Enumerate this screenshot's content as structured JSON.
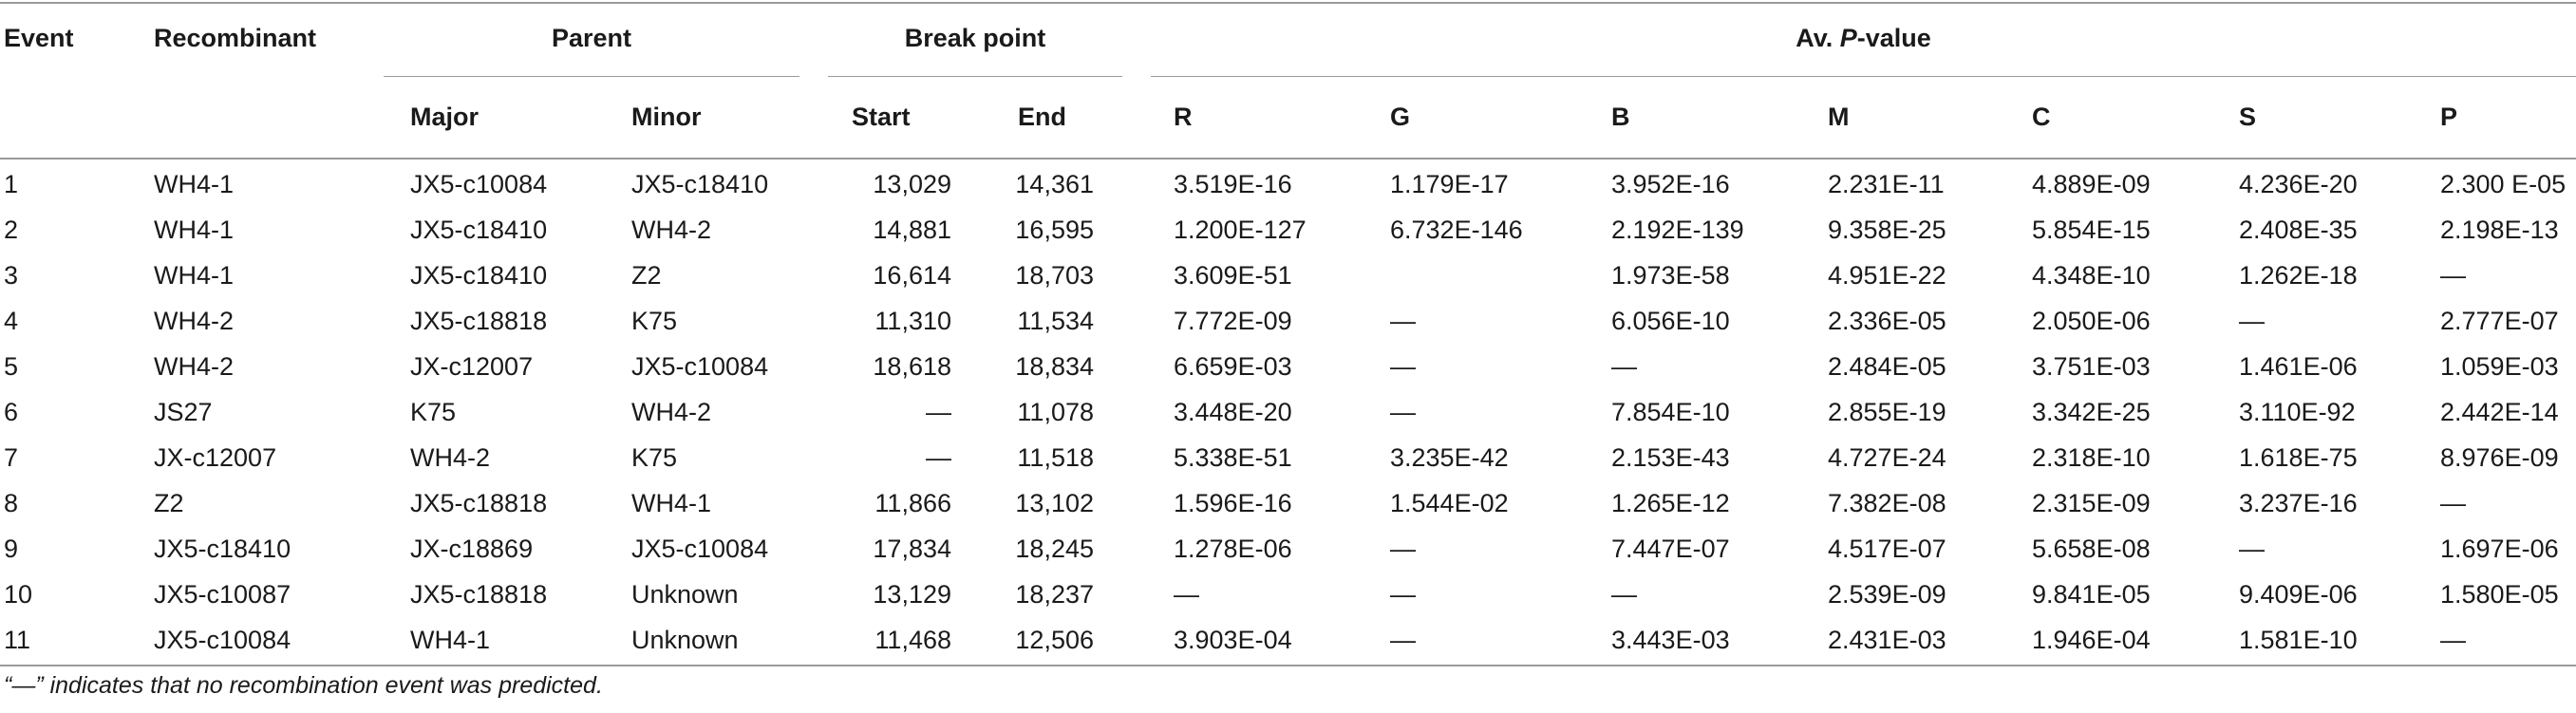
{
  "header": {
    "event": "Event",
    "recombinant": "Recombinant",
    "parent": "Parent",
    "breakpoint": "Break point",
    "pvalue_prefix": "Av. ",
    "pvalue_italic": "P",
    "pvalue_suffix": "-value",
    "major": "Major",
    "minor": "Minor",
    "start": "Start",
    "end": "End",
    "methods": [
      "R",
      "G",
      "B",
      "M",
      "C",
      "S",
      "P"
    ]
  },
  "rows": [
    [
      "1",
      "WH4-1",
      "JX5-c10084",
      "JX5-c18410",
      "13,029",
      "14,361",
      "3.519E-16",
      "1.179E-17",
      "3.952E-16",
      "2.231E-11",
      "4.889E-09",
      "4.236E-20",
      "2.300 E-05"
    ],
    [
      "2",
      "WH4-1",
      "JX5-c18410",
      "WH4-2",
      "14,881",
      "16,595",
      "1.200E-127",
      "6.732E-146",
      "2.192E-139",
      "9.358E-25",
      "5.854E-15",
      "2.408E-35",
      "2.198E-13"
    ],
    [
      "3",
      "WH4-1",
      "JX5-c18410",
      "Z2",
      "16,614",
      "18,703",
      "3.609E-51",
      "",
      "1.973E-58",
      "4.951E-22",
      "4.348E-10",
      "1.262E-18",
      "—"
    ],
    [
      "4",
      "WH4-2",
      "JX5-c18818",
      "K75",
      "11,310",
      "11,534",
      "7.772E-09",
      "—",
      "6.056E-10",
      "2.336E-05",
      "2.050E-06",
      "—",
      "2.777E-07"
    ],
    [
      "5",
      "WH4-2",
      "JX-c12007",
      "JX5-c10084",
      "18,618",
      "18,834",
      "6.659E-03",
      "—",
      "—",
      "2.484E-05",
      "3.751E-03",
      "1.461E-06",
      "1.059E-03"
    ],
    [
      "6",
      "JS27",
      "K75",
      "WH4-2",
      "—",
      "11,078",
      "3.448E-20",
      "—",
      "7.854E-10",
      "2.855E-19",
      "3.342E-25",
      "3.110E-92",
      "2.442E-14"
    ],
    [
      "7",
      "JX-c12007",
      "WH4-2",
      "K75",
      "—",
      "11,518",
      "5.338E-51",
      "3.235E-42",
      "2.153E-43",
      "4.727E-24",
      "2.318E-10",
      "1.618E-75",
      "8.976E-09"
    ],
    [
      "8",
      "Z2",
      "JX5-c18818",
      "WH4-1",
      "11,866",
      "13,102",
      "1.596E-16",
      "1.544E-02",
      "1.265E-12",
      "7.382E-08",
      "2.315E-09",
      "3.237E-16",
      "—"
    ],
    [
      "9",
      "JX5-c18410",
      "JX-c18869",
      "JX5-c10084",
      "17,834",
      "18,245",
      "1.278E-06",
      "—",
      "7.447E-07",
      "4.517E-07",
      "5.658E-08",
      "—",
      "1.697E-06"
    ],
    [
      "10",
      "JX5-c10087",
      "JX5-c18818",
      "Unknown",
      "13,129",
      "18,237",
      "—",
      "—",
      "—",
      "2.539E-09",
      "9.841E-05",
      "9.409E-06",
      "1.580E-05"
    ],
    [
      "11",
      "JX5-c10084",
      "WH4-1",
      "Unknown",
      "11,468",
      "12,506",
      "3.903E-04",
      "—",
      "3.443E-03",
      "2.431E-03",
      "1.946E-04",
      "1.581E-10",
      "—"
    ]
  ],
  "footnote": "“—” indicates that no recombination event was predicted."
}
